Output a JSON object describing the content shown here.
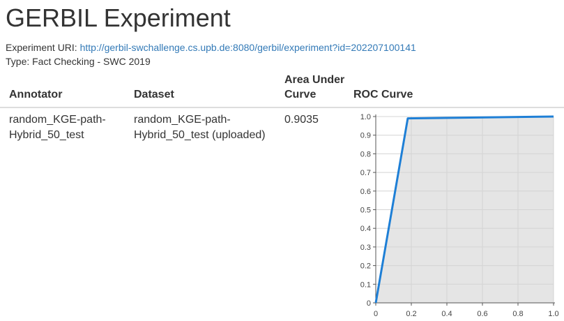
{
  "page": {
    "title": "GERBIL Experiment",
    "uri_label": "Experiment URI:",
    "uri": "http://gerbil-swchallenge.cs.upb.de:8080/gerbil/experiment?id=202207100141",
    "type_text": "Type: Fact Checking - SWC 2019"
  },
  "table": {
    "headers": {
      "annotator": "Annotator",
      "dataset": "Dataset",
      "auc_line1": "Area Under",
      "auc_line2": "Curve",
      "roc": "ROC Curve"
    },
    "row": {
      "annotator_line1": "random_KGE-path-",
      "annotator_line2": "Hybrid_50_test",
      "dataset_line1": "random_KGE-path-",
      "dataset_line2": "Hybrid_50_test (uploaded)",
      "auc": "0.9035"
    }
  },
  "chart_data": {
    "type": "area",
    "title": "",
    "xlabel": "",
    "ylabel": "",
    "xlim": [
      0,
      1
    ],
    "ylim": [
      0,
      1
    ],
    "x_ticks": [
      "0",
      "0.2",
      "0.4",
      "0.6",
      "0.8",
      "1.0"
    ],
    "y_ticks": [
      "0",
      "0.1",
      "0.2",
      "0.3",
      "0.4",
      "0.5",
      "0.6",
      "0.7",
      "0.8",
      "0.9",
      "1.0"
    ],
    "grid": true,
    "series": [
      {
        "x": [
          0,
          0.18,
          1.0
        ],
        "y": [
          0,
          0.99,
          1.0
        ]
      }
    ],
    "line_color": "#1e7fd6",
    "fill_color": "#e5e5e5"
  }
}
